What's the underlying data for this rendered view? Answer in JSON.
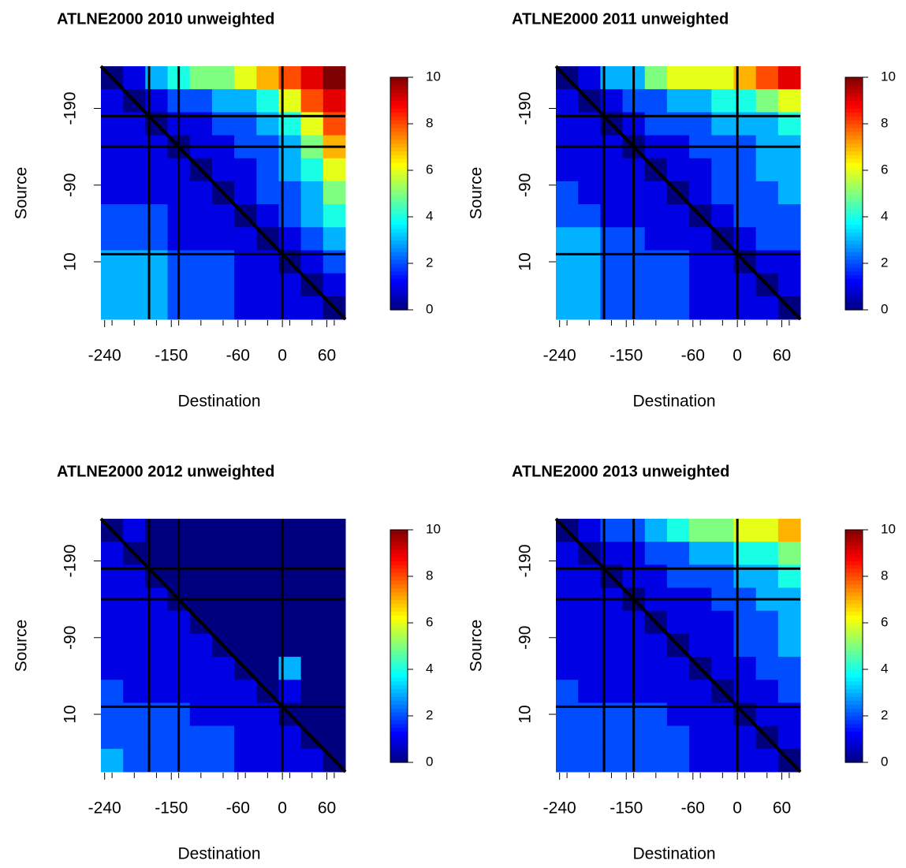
{
  "chart_data": [
    {
      "type": "heatmap",
      "title": "ATLNE2000 2010 unweighted",
      "x_label": "Destination",
      "y_label": "Source",
      "x": [
        -230,
        -200,
        -170,
        -140,
        -110,
        -80,
        -50,
        -20,
        10,
        40,
        70
      ],
      "y": [
        -230,
        -200,
        -170,
        -140,
        -110,
        -80,
        -50,
        -20,
        10,
        40,
        70
      ],
      "z": [
        [
          0,
          1,
          3,
          4,
          5,
          5,
          6,
          7,
          8,
          9,
          10
        ],
        [
          1,
          0,
          1,
          2,
          2,
          3,
          3,
          4,
          6,
          8,
          9
        ],
        [
          1,
          1,
          0,
          1,
          1,
          2,
          2,
          3,
          4,
          6,
          8
        ],
        [
          1,
          1,
          1,
          0,
          1,
          1,
          2,
          2,
          3,
          5,
          7
        ],
        [
          1,
          1,
          1,
          1,
          0,
          1,
          1,
          2,
          3,
          4,
          6
        ],
        [
          1,
          1,
          1,
          1,
          1,
          0,
          1,
          2,
          2,
          3,
          5
        ],
        [
          2,
          2,
          2,
          1,
          1,
          1,
          0,
          1,
          2,
          3,
          4
        ],
        [
          2,
          2,
          2,
          1,
          1,
          1,
          1,
          0,
          1,
          2,
          3
        ],
        [
          3,
          3,
          3,
          2,
          2,
          2,
          1,
          1,
          0,
          1,
          2
        ],
        [
          3,
          3,
          3,
          2,
          2,
          2,
          1,
          1,
          1,
          0,
          1
        ],
        [
          3,
          3,
          3,
          2,
          2,
          2,
          1,
          1,
          1,
          1,
          0
        ]
      ],
      "xlim": [
        -245,
        85
      ],
      "ylim": [
        85,
        -245
      ],
      "xticks": [
        -240,
        -150,
        -60,
        0,
        60
      ],
      "yticks": [
        -190,
        -90,
        10
      ],
      "zlim": [
        0,
        10
      ],
      "zticks": [
        0,
        2,
        4,
        6,
        8,
        10
      ],
      "colormap": "jet",
      "lines": [
        -180,
        -140,
        0
      ]
    },
    {
      "type": "heatmap",
      "title": "ATLNE2000 2011 unweighted",
      "x_label": "Destination",
      "y_label": "Source",
      "x": [
        -230,
        -200,
        -170,
        -140,
        -110,
        -80,
        -50,
        -20,
        10,
        40,
        70
      ],
      "y": [
        -230,
        -200,
        -170,
        -140,
        -110,
        -80,
        -50,
        -20,
        10,
        40,
        70
      ],
      "z": [
        [
          0,
          1,
          3,
          3,
          5,
          6,
          6,
          6,
          7,
          8,
          9
        ],
        [
          1,
          0,
          1,
          2,
          2,
          3,
          3,
          4,
          4,
          5,
          6
        ],
        [
          1,
          1,
          0,
          1,
          2,
          2,
          2,
          3,
          3,
          3,
          4
        ],
        [
          1,
          1,
          1,
          0,
          1,
          1,
          2,
          2,
          2,
          3,
          3
        ],
        [
          1,
          1,
          1,
          1,
          0,
          1,
          1,
          2,
          2,
          3,
          3
        ],
        [
          2,
          1,
          1,
          1,
          1,
          0,
          1,
          2,
          2,
          2,
          3
        ],
        [
          2,
          2,
          1,
          1,
          1,
          1,
          0,
          1,
          2,
          2,
          2
        ],
        [
          3,
          3,
          2,
          2,
          1,
          1,
          1,
          0,
          1,
          2,
          2
        ],
        [
          3,
          3,
          2,
          2,
          2,
          2,
          1,
          1,
          0,
          1,
          1
        ],
        [
          3,
          3,
          2,
          2,
          2,
          2,
          1,
          1,
          1,
          0,
          1
        ],
        [
          3,
          3,
          2,
          2,
          2,
          2,
          1,
          1,
          1,
          1,
          0
        ]
      ],
      "xlim": [
        -245,
        85
      ],
      "ylim": [
        85,
        -245
      ],
      "xticks": [
        -240,
        -150,
        -60,
        0,
        60
      ],
      "yticks": [
        -190,
        -90,
        10
      ],
      "zlim": [
        0,
        10
      ],
      "zticks": [
        0,
        2,
        4,
        6,
        8,
        10
      ],
      "colormap": "jet",
      "lines": [
        -180,
        -140,
        0
      ]
    },
    {
      "type": "heatmap",
      "title": "ATLNE2000 2012 unweighted",
      "x_label": "Destination",
      "y_label": "Source",
      "x": [
        -230,
        -200,
        -170,
        -140,
        -110,
        -80,
        -50,
        -20,
        10,
        40,
        70
      ],
      "y": [
        -230,
        -200,
        -170,
        -140,
        -110,
        -80,
        -50,
        -20,
        10,
        40,
        70
      ],
      "z": [
        [
          0,
          1,
          0,
          0,
          0,
          0,
          0,
          0,
          0,
          0,
          0
        ],
        [
          1,
          0,
          0,
          0,
          0,
          0,
          0,
          0,
          0,
          0,
          0
        ],
        [
          1,
          1,
          0,
          0,
          0,
          0,
          0,
          0,
          0,
          0,
          0
        ],
        [
          1,
          1,
          1,
          0,
          0,
          0,
          0,
          0,
          0,
          0,
          0
        ],
        [
          1,
          1,
          1,
          1,
          0,
          0,
          0,
          0,
          0,
          0,
          0
        ],
        [
          1,
          1,
          1,
          1,
          1,
          0,
          0,
          0,
          0,
          0,
          0
        ],
        [
          1,
          1,
          1,
          1,
          1,
          1,
          0,
          0,
          3,
          0,
          0
        ],
        [
          2,
          1,
          1,
          1,
          1,
          1,
          1,
          0,
          1,
          0,
          0
        ],
        [
          2,
          2,
          2,
          2,
          1,
          1,
          1,
          1,
          0,
          0,
          0
        ],
        [
          2,
          2,
          2,
          2,
          2,
          2,
          1,
          1,
          1,
          0,
          0
        ],
        [
          3,
          2,
          2,
          2,
          2,
          2,
          1,
          1,
          1,
          1,
          0
        ]
      ],
      "xlim": [
        -245,
        85
      ],
      "ylim": [
        85,
        -245
      ],
      "xticks": [
        -240,
        -150,
        -60,
        0,
        60
      ],
      "yticks": [
        -190,
        -90,
        10
      ],
      "zlim": [
        0,
        10
      ],
      "zticks": [
        0,
        2,
        4,
        6,
        8,
        10
      ],
      "colormap": "jet",
      "lines": [
        -180,
        -140,
        0
      ]
    },
    {
      "type": "heatmap",
      "title": "ATLNE2000 2013 unweighted",
      "x_label": "Destination",
      "y_label": "Source",
      "x": [
        -230,
        -200,
        -170,
        -140,
        -110,
        -80,
        -50,
        -20,
        10,
        40,
        70
      ],
      "y": [
        -230,
        -200,
        -170,
        -140,
        -110,
        -80,
        -50,
        -20,
        10,
        40,
        70
      ],
      "z": [
        [
          0,
          1,
          2,
          2,
          3,
          4,
          5,
          5,
          6,
          6,
          7
        ],
        [
          1,
          0,
          1,
          1,
          2,
          2,
          3,
          3,
          4,
          4,
          5
        ],
        [
          1,
          1,
          0,
          1,
          1,
          2,
          2,
          2,
          3,
          3,
          4
        ],
        [
          1,
          1,
          1,
          0,
          1,
          1,
          1,
          2,
          2,
          3,
          3
        ],
        [
          1,
          1,
          1,
          1,
          0,
          1,
          1,
          1,
          2,
          2,
          3
        ],
        [
          1,
          1,
          1,
          1,
          1,
          0,
          1,
          1,
          2,
          2,
          3
        ],
        [
          1,
          1,
          1,
          1,
          1,
          1,
          0,
          1,
          1,
          2,
          2
        ],
        [
          2,
          1,
          1,
          1,
          1,
          1,
          1,
          0,
          1,
          1,
          2
        ],
        [
          2,
          2,
          2,
          2,
          2,
          1,
          1,
          1,
          0,
          1,
          1
        ],
        [
          2,
          2,
          2,
          2,
          2,
          2,
          1,
          1,
          1,
          0,
          1
        ],
        [
          2,
          2,
          2,
          2,
          2,
          2,
          1,
          1,
          1,
          1,
          0
        ]
      ],
      "xlim": [
        -245,
        85
      ],
      "ylim": [
        85,
        -245
      ],
      "xticks": [
        -240,
        -150,
        -60,
        0,
        60
      ],
      "yticks": [
        -190,
        -90,
        10
      ],
      "zlim": [
        0,
        10
      ],
      "zticks": [
        0,
        2,
        4,
        6,
        8,
        10
      ],
      "colormap": "jet",
      "lines": [
        -180,
        -140,
        0
      ]
    }
  ]
}
